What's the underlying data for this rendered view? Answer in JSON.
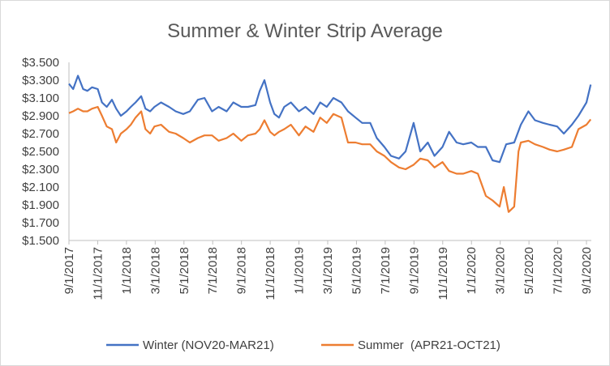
{
  "chart_data": {
    "type": "line",
    "title": "Summer  & Winter Strip Average",
    "xlabel": "",
    "ylabel": "",
    "y_ticks": [
      "$1.500",
      "$1.700",
      "$1.900",
      "$2.100",
      "$2.300",
      "$2.500",
      "$2.700",
      "$2.900",
      "$3.100",
      "$3.300",
      "$3.500"
    ],
    "ylim": [
      1.5,
      3.5
    ],
    "x_ticks": [
      "9/1/2017",
      "11/1/2017",
      "1/1/2018",
      "3/1/2018",
      "5/1/2018",
      "7/1/2018",
      "9/1/2018",
      "11/1/2018",
      "1/1/2019",
      "3/1/2019",
      "5/1/2019",
      "7/1/2019",
      "9/1/2019",
      "11/1/2019",
      "1/1/2020",
      "3/1/2020",
      "5/1/2020",
      "7/1/2020",
      "9/1/2020"
    ],
    "grid": false,
    "legend_position": "bottom",
    "series": [
      {
        "name": "Winter (NOV20-MAR21)",
        "color": "#4472C4",
        "x": [
          "2017-09-01",
          "2017-09-10",
          "2017-09-20",
          "2017-10-01",
          "2017-10-10",
          "2017-10-20",
          "2017-11-01",
          "2017-11-10",
          "2017-11-20",
          "2017-12-01",
          "2017-12-10",
          "2017-12-20",
          "2018-01-01",
          "2018-01-10",
          "2018-01-20",
          "2018-02-01",
          "2018-02-10",
          "2018-02-20",
          "2018-03-01",
          "2018-03-15",
          "2018-04-01",
          "2018-04-15",
          "2018-05-01",
          "2018-05-15",
          "2018-06-01",
          "2018-06-15",
          "2018-07-01",
          "2018-07-15",
          "2018-08-01",
          "2018-08-15",
          "2018-09-01",
          "2018-09-15",
          "2018-10-01",
          "2018-10-10",
          "2018-10-20",
          "2018-11-01",
          "2018-11-10",
          "2018-11-20",
          "2018-12-01",
          "2018-12-15",
          "2019-01-01",
          "2019-01-15",
          "2019-02-01",
          "2019-02-15",
          "2019-03-01",
          "2019-03-15",
          "2019-04-01",
          "2019-04-15",
          "2019-05-01",
          "2019-05-15",
          "2019-06-01",
          "2019-06-15",
          "2019-07-01",
          "2019-07-15",
          "2019-08-01",
          "2019-08-15",
          "2019-09-01",
          "2019-09-15",
          "2019-10-01",
          "2019-10-15",
          "2019-11-01",
          "2019-11-15",
          "2019-12-01",
          "2019-12-15",
          "2020-01-01",
          "2020-01-15",
          "2020-02-01",
          "2020-02-15",
          "2020-03-01",
          "2020-03-15",
          "2020-04-01",
          "2020-04-15",
          "2020-05-01",
          "2020-05-15",
          "2020-06-01",
          "2020-06-15",
          "2020-07-01",
          "2020-07-15",
          "2020-08-01",
          "2020-08-15",
          "2020-09-01",
          "2020-09-10"
        ],
        "values": [
          3.26,
          3.2,
          3.35,
          3.2,
          3.18,
          3.22,
          3.2,
          3.05,
          3.0,
          3.08,
          2.98,
          2.9,
          2.95,
          3.0,
          3.05,
          3.12,
          2.98,
          2.95,
          3.0,
          3.05,
          3.0,
          2.95,
          2.92,
          2.95,
          3.08,
          3.1,
          2.95,
          3.0,
          2.95,
          3.05,
          3.0,
          3.0,
          3.02,
          3.18,
          3.3,
          3.05,
          2.92,
          2.88,
          3.0,
          3.05,
          2.95,
          3.0,
          2.92,
          3.05,
          3.0,
          3.1,
          3.05,
          2.95,
          2.88,
          2.82,
          2.82,
          2.65,
          2.55,
          2.45,
          2.42,
          2.5,
          2.82,
          2.5,
          2.6,
          2.45,
          2.55,
          2.72,
          2.6,
          2.58,
          2.6,
          2.55,
          2.55,
          2.4,
          2.38,
          2.58,
          2.6,
          2.8,
          2.95,
          2.85,
          2.82,
          2.8,
          2.78,
          2.7,
          2.8,
          2.9,
          3.05,
          3.25
        ]
      },
      {
        "name": "Summer  (APR21-OCT21)",
        "color": "#ED7D31",
        "x": [
          "2017-09-01",
          "2017-09-10",
          "2017-09-20",
          "2017-10-01",
          "2017-10-10",
          "2017-10-20",
          "2017-11-01",
          "2017-11-10",
          "2017-11-20",
          "2017-12-01",
          "2017-12-10",
          "2017-12-20",
          "2018-01-01",
          "2018-01-10",
          "2018-01-20",
          "2018-02-01",
          "2018-02-10",
          "2018-02-20",
          "2018-03-01",
          "2018-03-15",
          "2018-04-01",
          "2018-04-15",
          "2018-05-01",
          "2018-05-15",
          "2018-06-01",
          "2018-06-15",
          "2018-07-01",
          "2018-07-15",
          "2018-08-01",
          "2018-08-15",
          "2018-09-01",
          "2018-09-15",
          "2018-10-01",
          "2018-10-10",
          "2018-10-20",
          "2018-11-01",
          "2018-11-10",
          "2018-11-20",
          "2018-12-01",
          "2018-12-15",
          "2019-01-01",
          "2019-01-15",
          "2019-02-01",
          "2019-02-15",
          "2019-03-01",
          "2019-03-15",
          "2019-04-01",
          "2019-04-15",
          "2019-05-01",
          "2019-05-15",
          "2019-06-01",
          "2019-06-15",
          "2019-07-01",
          "2019-07-15",
          "2019-08-01",
          "2019-08-15",
          "2019-09-01",
          "2019-09-15",
          "2019-10-01",
          "2019-10-15",
          "2019-11-01",
          "2019-11-15",
          "2019-12-01",
          "2019-12-15",
          "2020-01-01",
          "2020-01-15",
          "2020-02-01",
          "2020-02-15",
          "2020-03-01",
          "2020-03-10",
          "2020-03-20",
          "2020-04-01",
          "2020-04-10",
          "2020-04-15",
          "2020-05-01",
          "2020-05-15",
          "2020-06-01",
          "2020-06-15",
          "2020-07-01",
          "2020-07-15",
          "2020-08-01",
          "2020-08-15",
          "2020-09-01",
          "2020-09-10"
        ],
        "values": [
          2.93,
          2.95,
          2.98,
          2.95,
          2.95,
          2.98,
          3.0,
          2.9,
          2.78,
          2.75,
          2.6,
          2.7,
          2.75,
          2.8,
          2.88,
          2.95,
          2.75,
          2.7,
          2.78,
          2.8,
          2.72,
          2.7,
          2.65,
          2.6,
          2.65,
          2.68,
          2.68,
          2.62,
          2.65,
          2.7,
          2.62,
          2.68,
          2.7,
          2.75,
          2.85,
          2.72,
          2.68,
          2.72,
          2.75,
          2.8,
          2.68,
          2.78,
          2.72,
          2.88,
          2.82,
          2.92,
          2.88,
          2.6,
          2.6,
          2.58,
          2.58,
          2.5,
          2.45,
          2.38,
          2.32,
          2.3,
          2.35,
          2.42,
          2.4,
          2.32,
          2.38,
          2.28,
          2.25,
          2.25,
          2.28,
          2.25,
          2.0,
          1.95,
          1.88,
          2.1,
          1.82,
          1.88,
          2.5,
          2.6,
          2.62,
          2.58,
          2.55,
          2.52,
          2.5,
          2.52,
          2.55,
          2.75,
          2.8,
          2.86
        ]
      }
    ]
  }
}
